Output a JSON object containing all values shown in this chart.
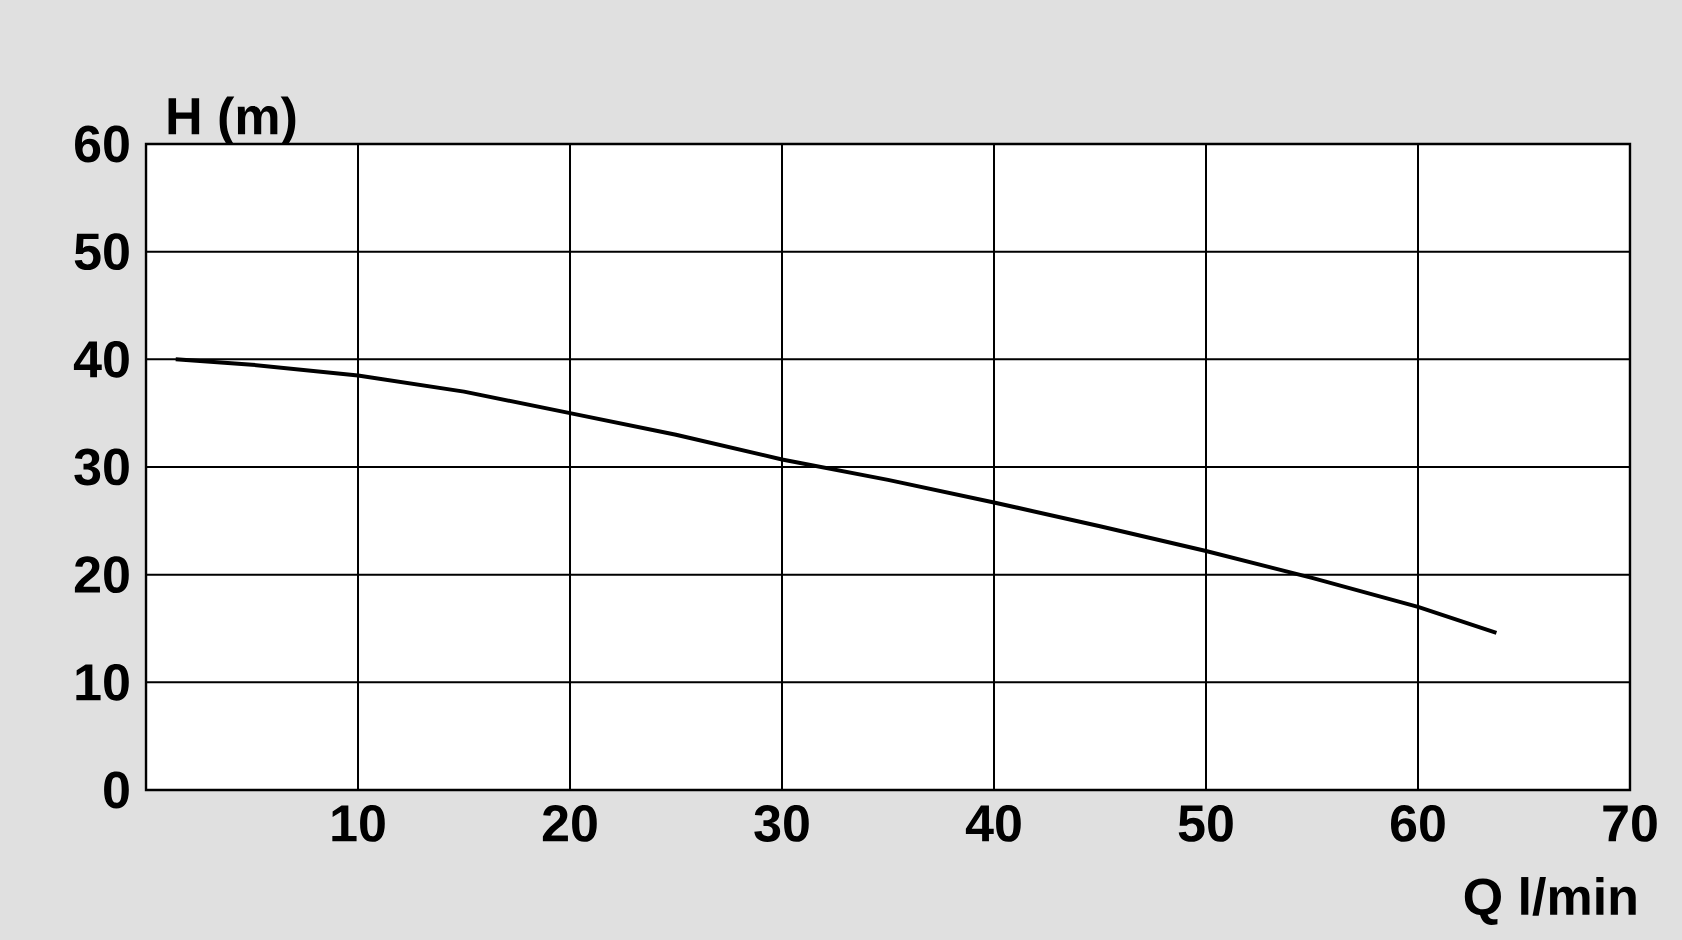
{
  "chart_data": {
    "type": "line",
    "xlabel": "Q l/min",
    "ylabel": "H (m)",
    "xlim": [
      0,
      70
    ],
    "ylim": [
      0,
      60
    ],
    "xticks": [
      {
        "value": 0,
        "label": null
      },
      10,
      20,
      30,
      40,
      50,
      60,
      70
    ],
    "yticks": [
      0,
      10,
      20,
      30,
      40,
      50,
      60
    ],
    "grid": true,
    "series": [
      {
        "color": "#000000",
        "x": [
          1.4,
          5,
          10,
          15,
          20,
          25,
          30,
          35,
          40,
          45,
          50,
          55,
          60,
          63.7
        ],
        "values": [
          40,
          39.5,
          38.5,
          37,
          35,
          33,
          30.7,
          28.8,
          26.7,
          24.5,
          22.2,
          19.7,
          17,
          14.6
        ]
      }
    ]
  }
}
